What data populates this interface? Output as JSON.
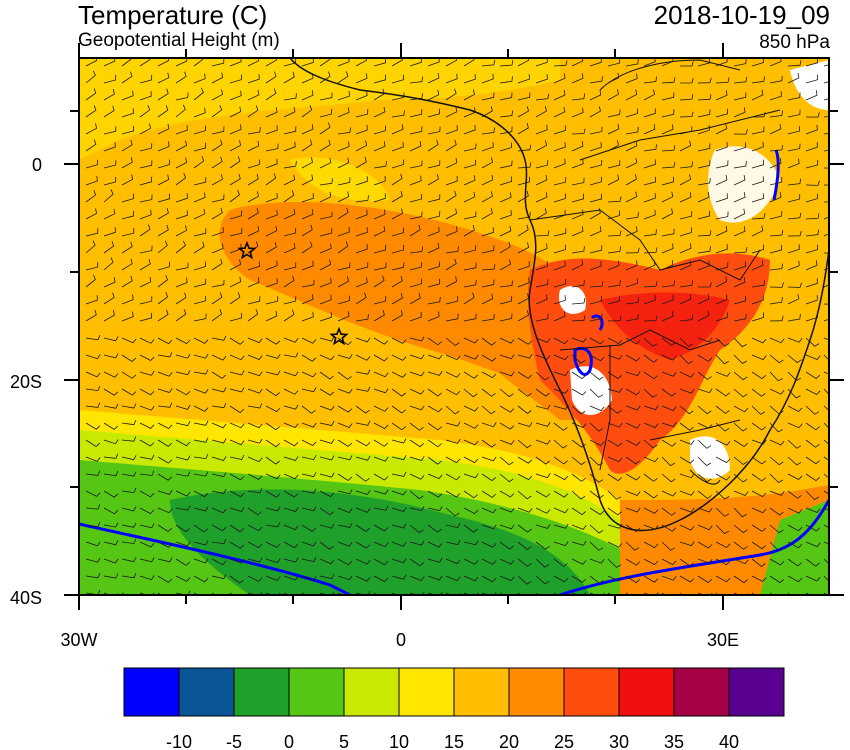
{
  "header": {
    "title": "Temperature (C)",
    "subtitle": "Geopotential Height (m)",
    "datetime": "2018-10-19_09",
    "level": "850 hPa"
  },
  "axes": {
    "y_ticks": [
      "0",
      "20S",
      "40S"
    ],
    "x_ticks": [
      "30W",
      "0",
      "30E"
    ]
  },
  "markers": [
    {
      "type": "star",
      "name": "star-marker-1"
    },
    {
      "type": "star",
      "name": "star-marker-2"
    }
  ],
  "colorbar": {
    "colors": [
      "#0000ff",
      "#0a5596",
      "#1fa02a",
      "#55c613",
      "#c9ea00",
      "#ffe600",
      "#ffbe00",
      "#ff8a00",
      "#ff4d10",
      "#f01010",
      "#a60046",
      "#5a0090"
    ],
    "labels": [
      "-10",
      "-5",
      "0",
      "5",
      "10",
      "15",
      "20",
      "25",
      "30",
      "35",
      "40"
    ]
  }
}
